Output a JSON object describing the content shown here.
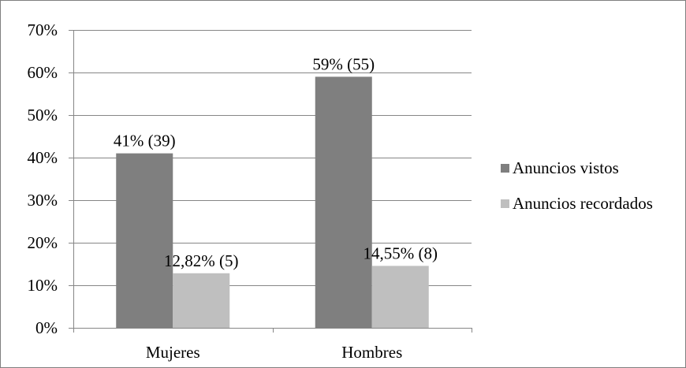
{
  "chart_data": {
    "type": "bar",
    "categories": [
      "Mujeres",
      "Hombres"
    ],
    "series": [
      {
        "name": "Anuncios vistos",
        "values": [
          41,
          59
        ],
        "labels": [
          "41% (39)",
          "59% (55)"
        ],
        "color": "#7f7f7f"
      },
      {
        "name": "Anuncios recordados",
        "values": [
          12.82,
          14.55
        ],
        "labels": [
          "12,82% (5)",
          "14,55% (8)"
        ],
        "color": "#bfbfbf"
      }
    ],
    "ylim": [
      0,
      70
    ],
    "yticks": [
      0,
      10,
      20,
      30,
      40,
      50,
      60,
      70
    ],
    "ytick_labels": [
      "0%",
      "10%",
      "20%",
      "30%",
      "40%",
      "50%",
      "60%",
      "70%"
    ],
    "grid": true,
    "gridline_color": "#868686",
    "legend_position": "right",
    "title": "",
    "xlabel": "",
    "ylabel": ""
  }
}
